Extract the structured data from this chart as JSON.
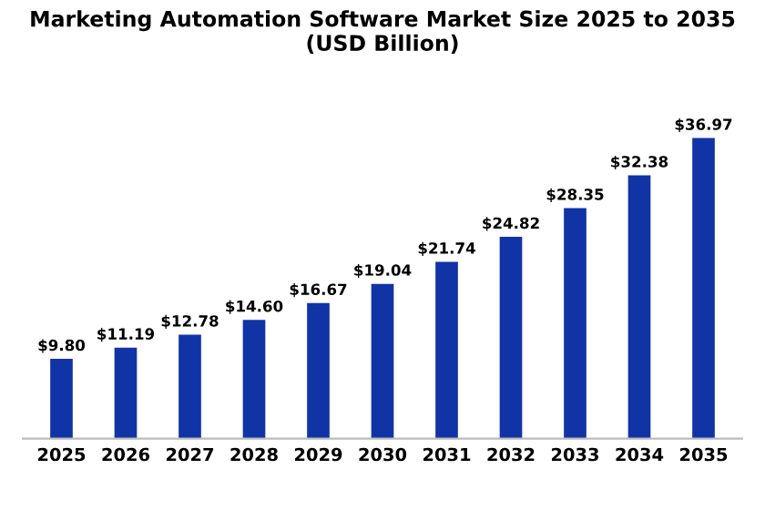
{
  "chart_data": {
    "type": "bar",
    "title": "Marketing Automation Software Market Size 2025 to 2035\n(USD Billion)",
    "categories": [
      "2025",
      "2026",
      "2027",
      "2028",
      "2029",
      "2030",
      "2031",
      "2032",
      "2033",
      "2034",
      "2035"
    ],
    "values": [
      9.8,
      11.19,
      12.78,
      14.6,
      16.67,
      19.04,
      21.74,
      24.82,
      28.35,
      32.38,
      36.97
    ],
    "value_labels": [
      "$9.80",
      "$11.19",
      "$12.78",
      "$14.60",
      "$16.67",
      "$19.04",
      "$21.74",
      "$24.82",
      "$28.35",
      "$32.38",
      "$36.97"
    ],
    "color": "#1034a6"
  }
}
